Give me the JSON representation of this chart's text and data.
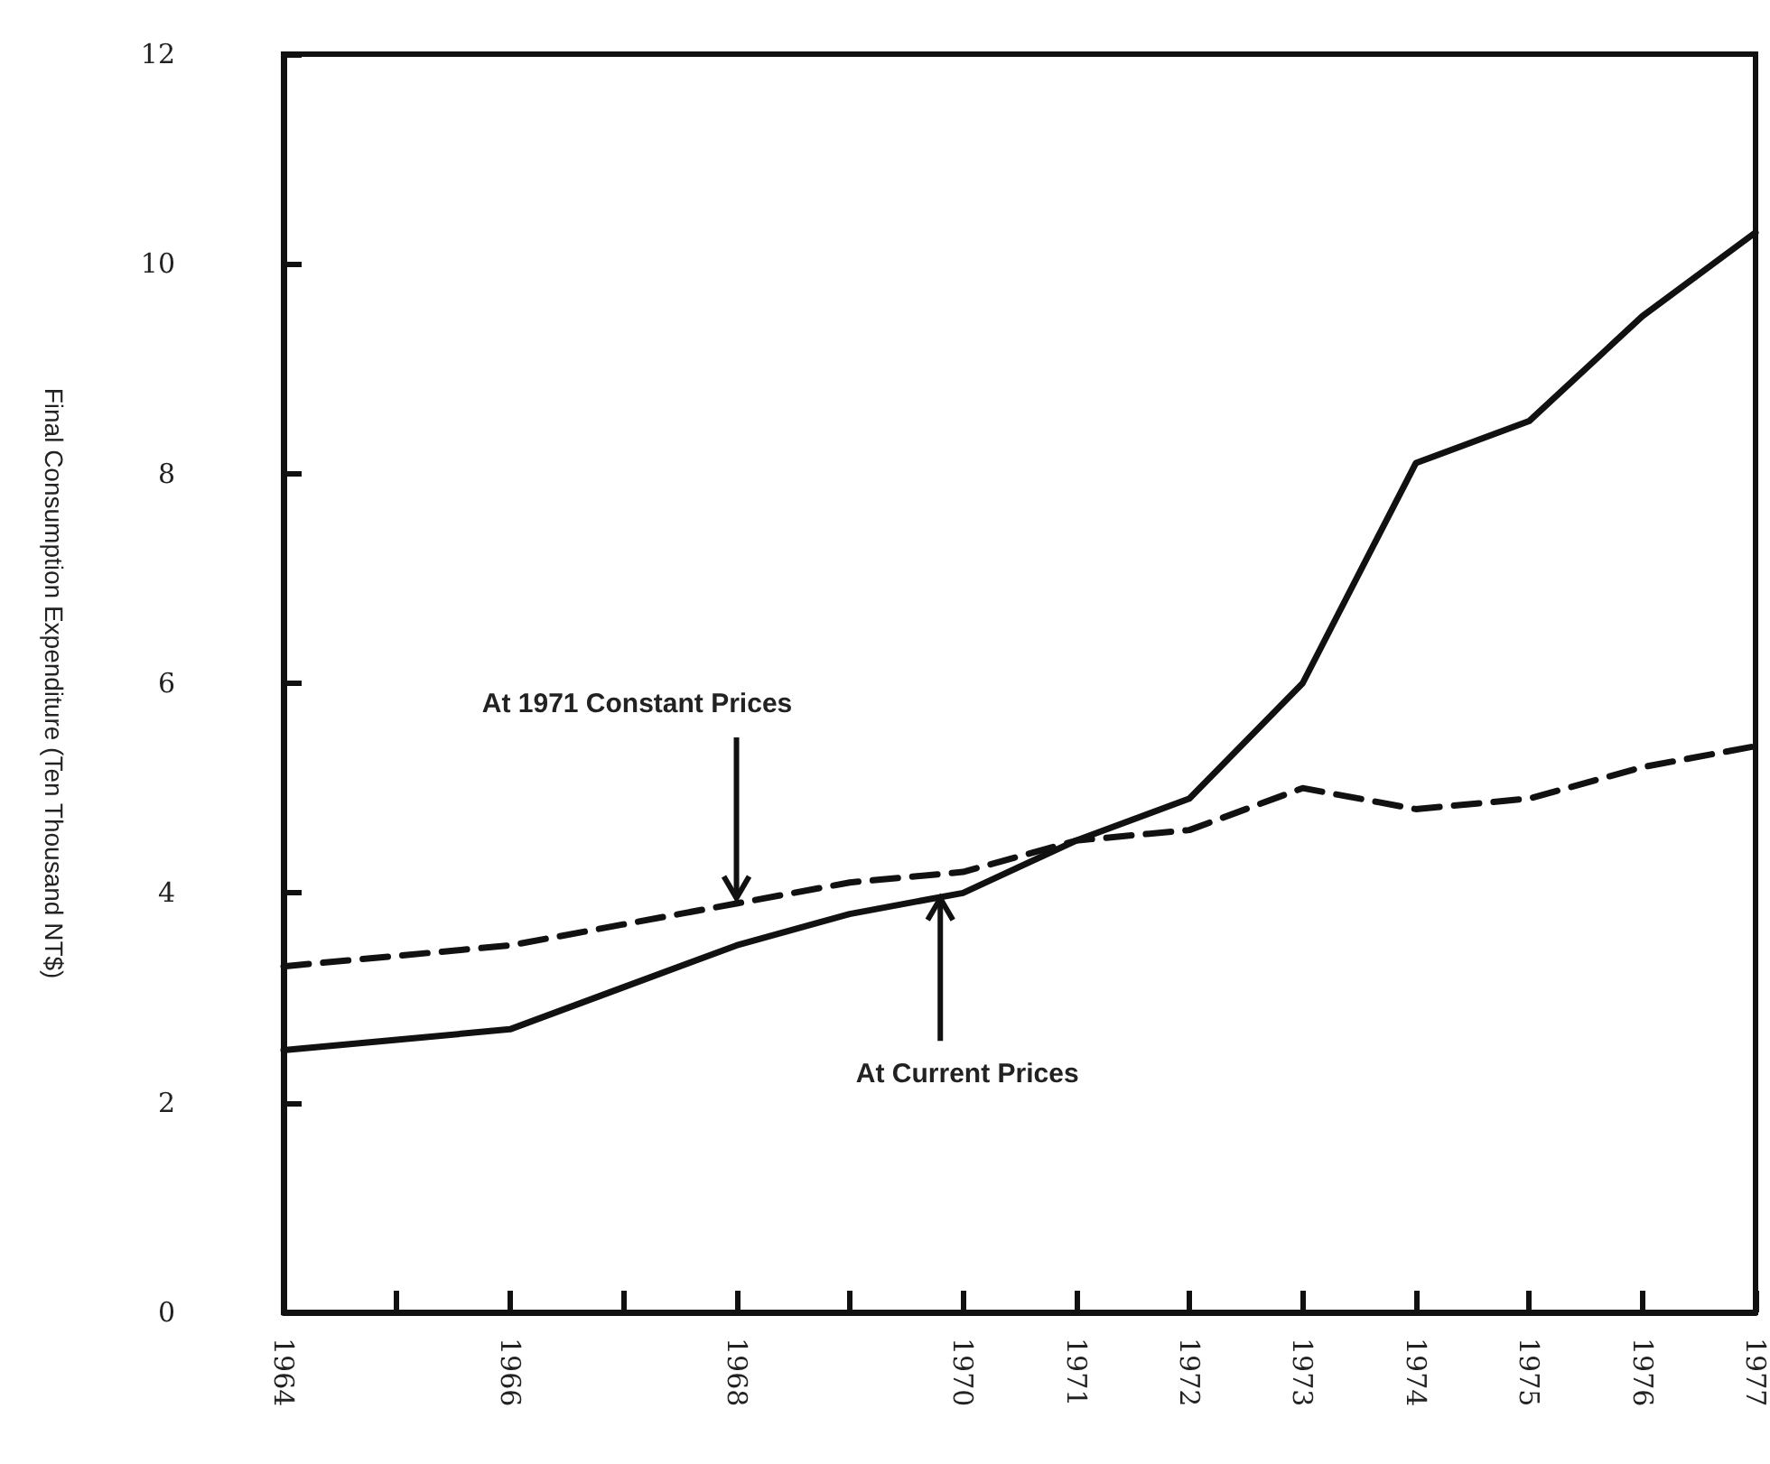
{
  "chart_data": {
    "type": "line",
    "ylabel": "Final Consumption Expenditure (Ten Thousand NT$)",
    "x": [
      1964,
      1965,
      1966,
      1967,
      1968,
      1969,
      1970,
      1971,
      1972,
      1973,
      1974,
      1975,
      1976,
      1977
    ],
    "series": [
      {
        "color": "#111111",
        "line_style": "solid",
        "values": [
          2.5,
          2.6,
          2.7,
          3.1,
          3.5,
          3.8,
          4.0,
          4.5,
          4.9,
          6.0,
          8.1,
          8.5,
          9.5,
          10.3
        ]
      },
      {
        "color": "#111111",
        "line_style": "dashed",
        "values": [
          3.3,
          3.4,
          3.5,
          3.7,
          3.9,
          4.1,
          4.2,
          4.5,
          4.6,
          5.0,
          4.8,
          4.9,
          5.2,
          5.4
        ]
      }
    ],
    "annotations": [
      {
        "text": "At 1971 Constant Prices",
        "x": 1968,
        "y": 3.9
      },
      {
        "text": "At Current Prices",
        "x": 1969.8,
        "y": 4.0
      }
    ],
    "xlim": [
      1964,
      1977
    ],
    "xticks": [
      1964,
      {
        "value": 1965,
        "label": null
      },
      1966,
      {
        "value": 1967,
        "label": null
      },
      1968,
      {
        "value": 1969,
        "label": null
      },
      1970,
      1971,
      1972,
      1973,
      1974,
      1975,
      1976,
      1977
    ],
    "ylim": [
      0,
      12
    ],
    "yticks": [
      0,
      2,
      4,
      6,
      8,
      10,
      12
    ],
    "grid": false,
    "marker": "none"
  }
}
